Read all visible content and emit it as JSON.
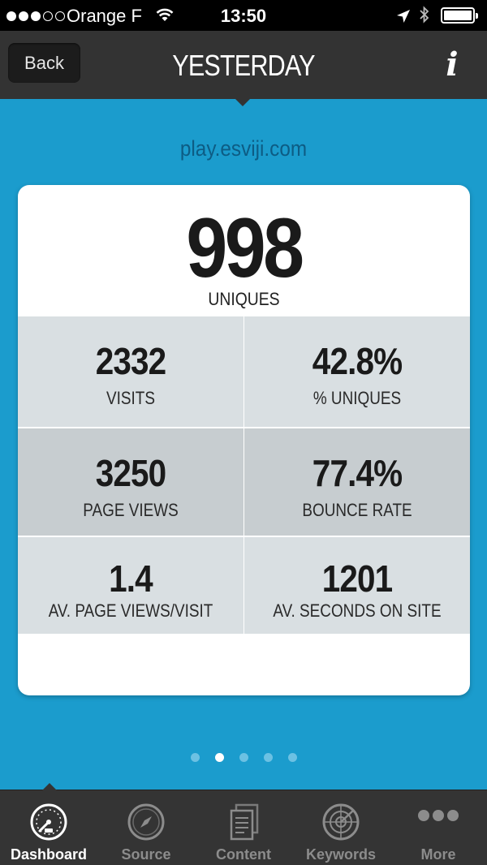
{
  "status_bar": {
    "carrier": "Orange F",
    "time": "13:50"
  },
  "nav": {
    "back_label": "Back",
    "title": "YESTERDAY",
    "info_label": "i"
  },
  "site": "play.esviji.com",
  "stats": {
    "hero": {
      "value": "998",
      "label": "UNIQUES"
    },
    "cells": [
      {
        "value": "2332",
        "label": "VISITS"
      },
      {
        "value": "42.8%",
        "label": "% UNIQUES"
      },
      {
        "value": "3250",
        "label": "PAGE VIEWS"
      },
      {
        "value": "77.4%",
        "label": "BOUNCE RATE"
      },
      {
        "value": "1.4",
        "label": "AV. PAGE VIEWS/VISIT"
      },
      {
        "value": "1201",
        "label": "AV. SECONDS ON SITE"
      }
    ]
  },
  "pager": {
    "count": 5,
    "active_index": 1
  },
  "tabs": [
    {
      "label": "Dashboard",
      "icon": "speedometer-icon",
      "active": true
    },
    {
      "label": "Source",
      "icon": "compass-icon",
      "active": false
    },
    {
      "label": "Content",
      "icon": "documents-icon",
      "active": false
    },
    {
      "label": "Keywords",
      "icon": "radar-icon",
      "active": false
    },
    {
      "label": "More",
      "icon": "more-dots-icon",
      "active": false
    }
  ],
  "colors": {
    "background": "#1b9ccd",
    "bar": "#333333",
    "active_tab": "#ffffff",
    "inactive_tab": "#8c8c8c"
  }
}
